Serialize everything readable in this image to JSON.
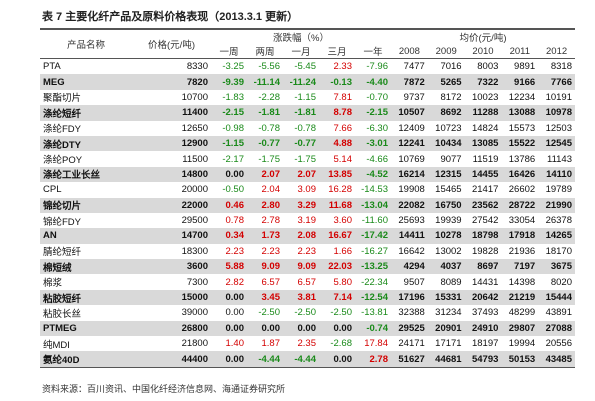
{
  "title": "表 7 主要化纤产品及原料价格表现（2013.3.1 更新）",
  "table": {
    "header": {
      "name": "产品名称",
      "price": "价格(元/吨)",
      "change_group": "涨跌幅（%）",
      "change": [
        "一周",
        "两周",
        "一月",
        "三月",
        "一年"
      ],
      "avg_group": "均价(元/吨)",
      "avg": [
        "2008",
        "2009",
        "2010",
        "2011",
        "2012"
      ]
    },
    "rows": [
      {
        "shaded": false,
        "cells": [
          "PTA",
          "8330",
          "-3.25",
          "-5.56",
          "-5.45",
          "2.33",
          "-7.96",
          "7477",
          "7016",
          "8003",
          "9891",
          "8318"
        ]
      },
      {
        "shaded": true,
        "cells": [
          "MEG",
          "7820",
          "-9.39",
          "-11.14",
          "-11.24",
          "-0.13",
          "-4.40",
          "7872",
          "5265",
          "7322",
          "9166",
          "7766"
        ]
      },
      {
        "shaded": false,
        "cells": [
          "聚酯切片",
          "10700",
          "-1.83",
          "-2.28",
          "-1.15",
          "7.81",
          "-0.70",
          "9737",
          "8172",
          "10023",
          "12234",
          "10191"
        ]
      },
      {
        "shaded": true,
        "cells": [
          "涤纶短纤",
          "11400",
          "-2.15",
          "-1.81",
          "-1.81",
          "8.78",
          "-2.15",
          "10507",
          "8692",
          "11288",
          "13088",
          "10978"
        ]
      },
      {
        "shaded": false,
        "cells": [
          "涤纶FDY",
          "12650",
          "-0.98",
          "-0.78",
          "-0.78",
          "7.66",
          "-6.30",
          "12409",
          "10723",
          "14824",
          "15573",
          "12503"
        ]
      },
      {
        "shaded": true,
        "cells": [
          "涤纶DTY",
          "12900",
          "-1.15",
          "-0.77",
          "-0.77",
          "4.88",
          "-3.01",
          "12241",
          "10434",
          "13085",
          "15522",
          "12545"
        ]
      },
      {
        "shaded": false,
        "cells": [
          "涤纶POY",
          "11500",
          "-2.17",
          "-1.75",
          "-1.75",
          "5.14",
          "-4.66",
          "10769",
          "9077",
          "11519",
          "13786",
          "11143"
        ]
      },
      {
        "shaded": true,
        "cells": [
          "涤纶工业长丝",
          "14800",
          "0.00",
          "2.07",
          "2.07",
          "13.85",
          "-4.52",
          "16214",
          "12315",
          "14455",
          "16426",
          "14110"
        ]
      },
      {
        "shaded": false,
        "cells": [
          "CPL",
          "20000",
          "-0.50",
          "2.04",
          "3.09",
          "16.28",
          "-14.53",
          "19908",
          "15465",
          "21417",
          "26602",
          "19789"
        ]
      },
      {
        "shaded": true,
        "cells": [
          "锦纶切片",
          "22000",
          "0.46",
          "2.80",
          "3.29",
          "11.68",
          "-13.04",
          "22082",
          "16750",
          "23562",
          "28722",
          "21990"
        ]
      },
      {
        "shaded": false,
        "cells": [
          "锦纶FDY",
          "29500",
          "0.78",
          "2.78",
          "3.19",
          "3.60",
          "-11.60",
          "25693",
          "19939",
          "27542",
          "33054",
          "26378"
        ]
      },
      {
        "shaded": true,
        "cells": [
          "AN",
          "14700",
          "0.34",
          "1.73",
          "2.08",
          "16.67",
          "-17.42",
          "14411",
          "10278",
          "18798",
          "17918",
          "14265"
        ]
      },
      {
        "shaded": false,
        "cells": [
          "腈纶短纤",
          "18300",
          "2.23",
          "2.23",
          "2.23",
          "1.66",
          "-16.27",
          "16642",
          "13002",
          "19828",
          "21936",
          "18170"
        ]
      },
      {
        "shaded": true,
        "cells": [
          "棉短绒",
          "3600",
          "5.88",
          "9.09",
          "9.09",
          "22.03",
          "-13.25",
          "4294",
          "4037",
          "8697",
          "7197",
          "3675"
        ]
      },
      {
        "shaded": false,
        "cells": [
          "棉浆",
          "7300",
          "2.82",
          "6.57",
          "6.57",
          "5.80",
          "-22.34",
          "9507",
          "8089",
          "14431",
          "14398",
          "8020"
        ]
      },
      {
        "shaded": true,
        "cells": [
          "粘胶短纤",
          "15000",
          "0.00",
          "3.45",
          "3.81",
          "7.14",
          "-12.54",
          "17196",
          "15331",
          "20642",
          "21219",
          "15444"
        ]
      },
      {
        "shaded": false,
        "cells": [
          "粘胶长丝",
          "39000",
          "0.00",
          "-2.50",
          "-2.50",
          "-2.50",
          "-13.81",
          "32388",
          "31234",
          "37493",
          "48299",
          "43891"
        ]
      },
      {
        "shaded": true,
        "cells": [
          "PTMEG",
          "26800",
          "0.00",
          "0.00",
          "0.00",
          "0.00",
          "-0.74",
          "29525",
          "20901",
          "24910",
          "29807",
          "27088"
        ]
      },
      {
        "shaded": false,
        "cells": [
          "纯MDI",
          "21800",
          "1.40",
          "1.87",
          "2.35",
          "-2.68",
          "17.84",
          "24171",
          "17171",
          "18197",
          "19994",
          "20556"
        ]
      },
      {
        "shaded": true,
        "cells": [
          "氨纶40D",
          "44400",
          "0.00",
          "-4.44",
          "-4.44",
          "0.00",
          "2.78",
          "51627",
          "44681",
          "54793",
          "50153",
          "43485"
        ]
      }
    ]
  },
  "footer": "资料来源：百川资讯、中国化纤经济信息网、海通证券研究所"
}
